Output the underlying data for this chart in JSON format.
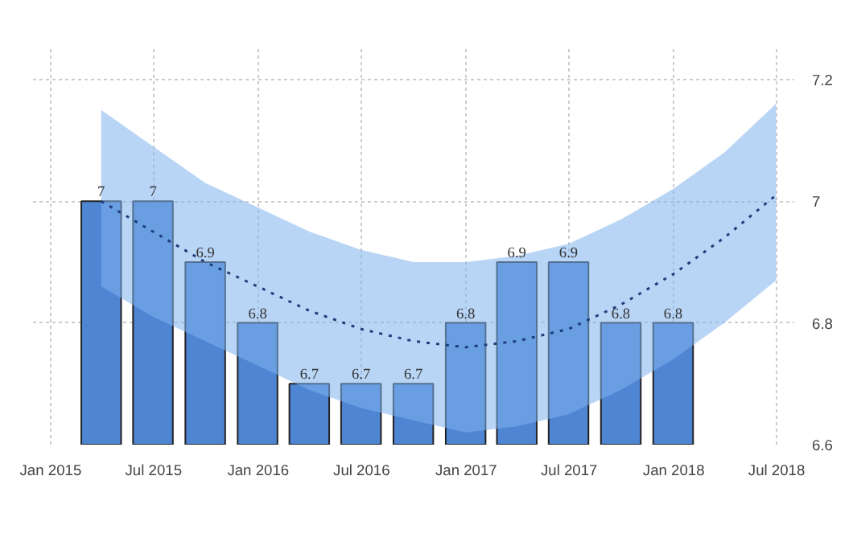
{
  "chart_data": {
    "type": "bar",
    "x": [
      "2015-03-31",
      "2015-06-30",
      "2015-09-30",
      "2015-12-31",
      "2016-03-31",
      "2016-06-30",
      "2016-09-30",
      "2016-12-31",
      "2017-03-31",
      "2017-06-30",
      "2017-09-30",
      "2017-12-31"
    ],
    "series": [
      {
        "color": "#4f86d4",
        "values": [
          7,
          7,
          6.9,
          6.8,
          6.7,
          6.7,
          6.7,
          6.8,
          6.9,
          6.9,
          6.8,
          6.8
        ],
        "value_labels": [
          "7",
          "7",
          "6.9",
          "6.8",
          "6.7",
          "6.7",
          "6.7",
          "6.8",
          "6.9",
          "6.9",
          "6.8",
          "6.8"
        ]
      },
      {
        "type": "line",
        "color": "#1f3f7a",
        "line_style": "dotted",
        "x": [
          "2015-03-31",
          "2015-06-30",
          "2015-09-30",
          "2015-12-31",
          "2016-03-31",
          "2016-06-30",
          "2016-09-30",
          "2016-12-31",
          "2017-03-31",
          "2017-06-30",
          "2017-09-30",
          "2017-12-31",
          "2018-03-31",
          "2018-06-30"
        ],
        "values": [
          7.0,
          6.95,
          6.9,
          6.86,
          6.82,
          6.79,
          6.77,
          6.76,
          6.77,
          6.79,
          6.83,
          6.88,
          6.94,
          7.01
        ],
        "upper": [
          7.15,
          7.09,
          7.03,
          6.99,
          6.95,
          6.92,
          6.9,
          6.9,
          6.91,
          6.93,
          6.97,
          7.02,
          7.08,
          7.16
        ],
        "lower": [
          6.86,
          6.81,
          6.77,
          6.73,
          6.69,
          6.66,
          6.64,
          6.62,
          6.63,
          6.65,
          6.69,
          6.74,
          6.8,
          6.87
        ]
      }
    ],
    "xlim": [
      "2014-12-01",
      "2018-08-01"
    ],
    "xticks": [
      {
        "value": "2015-01-01",
        "label": "Jan 2015"
      },
      {
        "value": "2015-07-01",
        "label": "Jul 2015"
      },
      {
        "value": "2016-01-01",
        "label": "Jan 2016"
      },
      {
        "value": "2016-07-01",
        "label": "Jul 2016"
      },
      {
        "value": "2017-01-01",
        "label": "Jan 2017"
      },
      {
        "value": "2017-07-01",
        "label": "Jul 2017"
      },
      {
        "value": "2018-01-01",
        "label": "Jan 2018"
      },
      {
        "value": "2018-07-01",
        "label": "Jul 2018"
      }
    ],
    "ylim": [
      6.6,
      7.25
    ],
    "yticks": [
      6.6,
      6.8,
      7,
      7.2
    ],
    "grid": true
  }
}
